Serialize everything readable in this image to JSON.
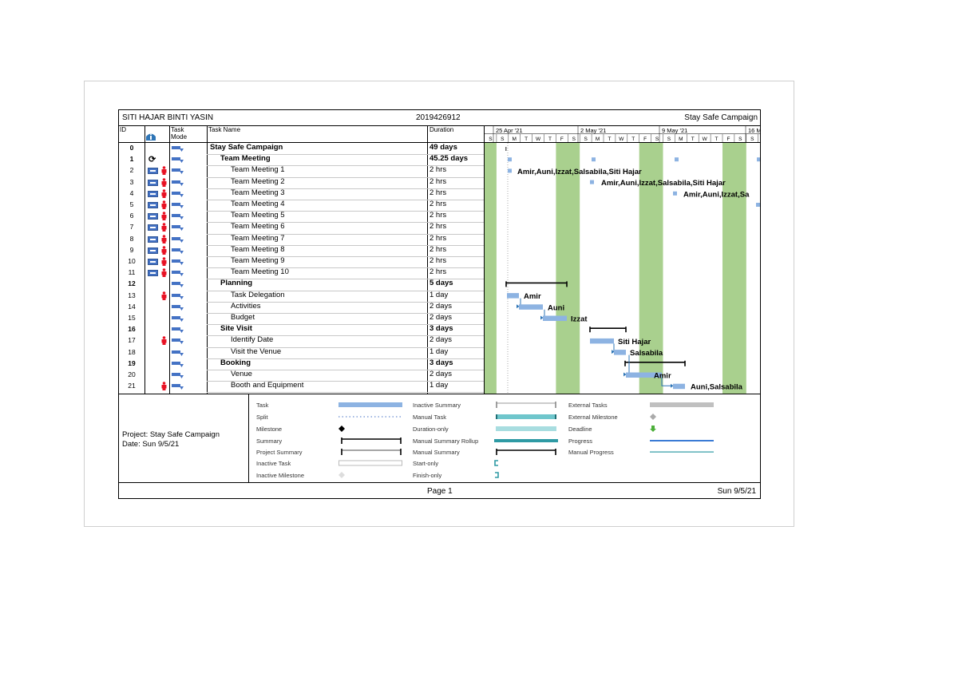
{
  "header": {
    "author": "SITI HAJAR BINTI YASIN",
    "student_id": "2019426912",
    "project_name": "Stay Safe Campaign"
  },
  "columns": {
    "id": "ID",
    "task_mode": "Task Mode",
    "task_name": "Task Name",
    "duration": "Duration"
  },
  "timescale": {
    "weeks": [
      "25 Apr '21",
      "2 May '21",
      "9 May '21",
      "16 M"
    ],
    "days": [
      "S",
      "S",
      "M",
      "T",
      "W",
      "T",
      "F",
      "S",
      "S",
      "M",
      "T",
      "W",
      "T",
      "F",
      "S",
      "S",
      "M",
      "T",
      "W",
      "T",
      "F",
      "S",
      "S"
    ]
  },
  "tasks": [
    {
      "id": "0",
      "name": "Stay Safe Campaign",
      "duration": "49 days",
      "level": 0,
      "bold": true,
      "cal": false,
      "person": false,
      "recurring": false
    },
    {
      "id": "1",
      "name": "Team Meeting",
      "duration": "45.25 days",
      "level": 1,
      "bold": true,
      "cal": false,
      "person": false,
      "recurring": true
    },
    {
      "id": "2",
      "name": "Team Meeting 1",
      "duration": "2 hrs",
      "level": 2,
      "bold": false,
      "cal": true,
      "person": true,
      "recurring": false
    },
    {
      "id": "3",
      "name": "Team Meeting 2",
      "duration": "2 hrs",
      "level": 2,
      "bold": false,
      "cal": true,
      "person": true,
      "recurring": false
    },
    {
      "id": "4",
      "name": "Team Meeting 3",
      "duration": "2 hrs",
      "level": 2,
      "bold": false,
      "cal": true,
      "person": true,
      "recurring": false
    },
    {
      "id": "5",
      "name": "Team Meeting 4",
      "duration": "2 hrs",
      "level": 2,
      "bold": false,
      "cal": true,
      "person": true,
      "recurring": false
    },
    {
      "id": "6",
      "name": "Team Meeting 5",
      "duration": "2 hrs",
      "level": 2,
      "bold": false,
      "cal": true,
      "person": true,
      "recurring": false
    },
    {
      "id": "7",
      "name": "Team Meeting 6",
      "duration": "2 hrs",
      "level": 2,
      "bold": false,
      "cal": true,
      "person": true,
      "recurring": false
    },
    {
      "id": "8",
      "name": "Team Meeting 7",
      "duration": "2 hrs",
      "level": 2,
      "bold": false,
      "cal": true,
      "person": true,
      "recurring": false
    },
    {
      "id": "9",
      "name": "Team Meeting 8",
      "duration": "2 hrs",
      "level": 2,
      "bold": false,
      "cal": true,
      "person": true,
      "recurring": false
    },
    {
      "id": "10",
      "name": "Team Meeting 9",
      "duration": "2 hrs",
      "level": 2,
      "bold": false,
      "cal": true,
      "person": true,
      "recurring": false
    },
    {
      "id": "11",
      "name": "Team Meeting 10",
      "duration": "2 hrs",
      "level": 2,
      "bold": false,
      "cal": true,
      "person": true,
      "recurring": false
    },
    {
      "id": "12",
      "name": "Planning",
      "duration": "5 days",
      "level": 1,
      "bold": true,
      "cal": false,
      "person": false,
      "recurring": false
    },
    {
      "id": "13",
      "name": "Task Delegation",
      "duration": "1 day",
      "level": 2,
      "bold": false,
      "cal": false,
      "person": true,
      "recurring": false
    },
    {
      "id": "14",
      "name": "Activities",
      "duration": "2 days",
      "level": 2,
      "bold": false,
      "cal": false,
      "person": false,
      "recurring": false
    },
    {
      "id": "15",
      "name": "Budget",
      "duration": "2 days",
      "level": 2,
      "bold": false,
      "cal": false,
      "person": false,
      "recurring": false
    },
    {
      "id": "16",
      "name": "Site Visit",
      "duration": "3 days",
      "level": 1,
      "bold": true,
      "cal": false,
      "person": false,
      "recurring": false
    },
    {
      "id": "17",
      "name": "Identify Date",
      "duration": "2 days",
      "level": 2,
      "bold": false,
      "cal": false,
      "person": true,
      "recurring": false
    },
    {
      "id": "18",
      "name": "Visit the Venue",
      "duration": "1 day",
      "level": 2,
      "bold": false,
      "cal": false,
      "person": false,
      "recurring": false
    },
    {
      "id": "19",
      "name": "Booking",
      "duration": "3 days",
      "level": 1,
      "bold": true,
      "cal": false,
      "person": false,
      "recurring": false
    },
    {
      "id": "20",
      "name": "Venue",
      "duration": "2 days",
      "level": 2,
      "bold": false,
      "cal": false,
      "person": false,
      "recurring": false
    },
    {
      "id": "21",
      "name": "Booth and Equipment",
      "duration": "1 day",
      "level": 2,
      "bold": false,
      "cal": false,
      "person": true,
      "recurring": false
    }
  ],
  "gantt_labels": {
    "meeting1": "Amir,Auni,Izzat,Salsabila,Siti Hajar",
    "meeting2": "Amir,Auni,Izzat,Salsabila,Siti Hajar",
    "meeting3": "Amir,Auni,Izzat,Sa",
    "task13": "Amir",
    "task14": "Auni",
    "task15": "Izzat",
    "task17": "Siti Hajar",
    "task18": "Salsabila",
    "task20": "Amir",
    "task21": "Auni,Salsabila"
  },
  "legend": {
    "project_line": "Project: Stay Safe Campaign",
    "date_line": "Date: Sun 9/5/21",
    "col1": [
      "Task",
      "Split",
      "Milestone",
      "Summary",
      "Project Summary",
      "Inactive Task",
      "Inactive Milestone"
    ],
    "col2": [
      "Inactive Summary",
      "Manual Task",
      "Duration-only",
      "Manual Summary Rollup",
      "Manual Summary",
      "Start-only",
      "Finish-only"
    ],
    "col3": [
      "External Tasks",
      "External Milestone",
      "Deadline",
      "Progress",
      "Manual Progress"
    ]
  },
  "footer": {
    "page": "Page 1",
    "date": "Sun 9/5/21"
  },
  "colors": {
    "task_bar": "#8db3e2",
    "summary": "#000000",
    "weekend_shade": "#a9d08e",
    "manual_task": "#6fc6cc",
    "progress": "#3a7bd5",
    "person_icon": "#e81123",
    "mode_icon": "#4472c4"
  }
}
